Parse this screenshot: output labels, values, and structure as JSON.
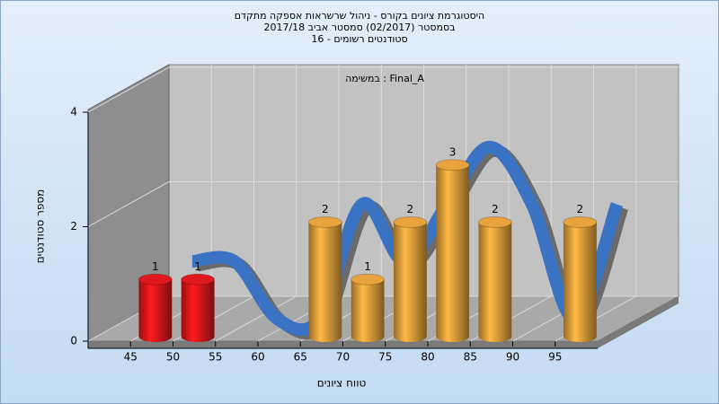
{
  "chart_data": {
    "type": "histogram",
    "title": [
      "היסטוגרמת ציונים בקורס - ניהול שרשראות אספקה מתקדם",
      "בסמסטר  (02/2017)  סמסטר אביב 2017/18",
      "סטודנטים רשומים - 16"
    ],
    "annotation": "במשימה : Final_A",
    "x_label": "טווח ציונים",
    "y_label": "מספר סטודנטים",
    "bins": [
      45,
      50,
      55,
      60,
      65,
      70,
      75,
      80,
      85,
      90,
      95,
      100
    ],
    "counts": [
      1,
      1,
      0,
      0,
      2,
      1,
      2,
      3,
      2,
      0,
      2
    ],
    "colors": [
      "#e0181c",
      "#e0181c",
      "#e8a33c",
      "#e8a33c",
      "#e8a33c",
      "#e8a33c",
      "#e8a33c",
      "#e8a33c",
      "#e8a33c",
      "#e8a33c",
      "#e8a33c"
    ],
    "line_color": "#3a72c4",
    "xlim": [
      40,
      100
    ],
    "xticks": [
      45,
      50,
      55,
      60,
      65,
      70,
      75,
      80,
      85,
      90,
      95
    ],
    "ylim": [
      0,
      4
    ],
    "yticks": [
      0,
      2,
      4
    ],
    "grid": true
  }
}
